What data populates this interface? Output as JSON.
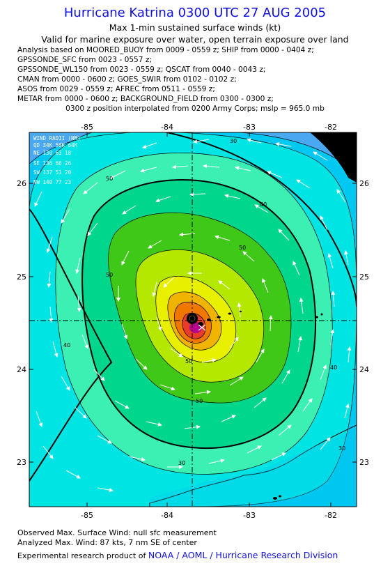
{
  "header": {
    "title": "Hurricane Katrina 0300 UTC 27 AUG 2005",
    "subtitle": "Max 1-min sustained surface winds (kt)",
    "valid_note": "Valid for marine exposure over water, open terrain exposure over land",
    "sources": [
      "Analysis based on  MOORED_BUOY from 0009 - 0559 z;  SHIP from 0000 - 0404 z;",
      "GPSSONDE_SFC from 0023 - 0557 z;",
      "GPSSONDE_WL150 from 0023 - 0559 z;  QSCAT from 0040 - 0043 z;",
      "CMAN from 0000 - 0600 z;  GOES_SWIR from 0102 - 0102 z;",
      "ASOS from 0029 - 0559 z;  AFREC from 0511 - 0559 z;",
      "METAR from 0000 - 0600 z;  BACKGROUND_FIELD from 0300 - 0300 z;"
    ],
    "interpolation": "0300 z position interpolated from 0200 Army Corps; mslp = 965.0 mb"
  },
  "map": {
    "lon_ticks": [
      "-85",
      "-84",
      "-83",
      "-82"
    ],
    "lat_ticks": [
      "26",
      "25",
      "24",
      "23"
    ],
    "contour_labels": [
      "50",
      "50",
      "40",
      "40",
      "50",
      "50",
      "50",
      "40",
      "30",
      "30",
      "30"
    ],
    "colors": {
      "lt30": "#4aa8f0",
      "c30": "#00c8f0",
      "c40": "#00e4e4",
      "c50": "#3cf0b4",
      "c60": "#00d68c",
      "c65": "#40c818",
      "c70": "#b4e800",
      "c75": "#e8f000",
      "c80": "#f0b400",
      "c85": "#f07800",
      "c90": "#e83c28",
      "c95": "#b8008c",
      "land": "#000000"
    }
  },
  "wind_radii": {
    "header": "WIND RADII (NM)",
    "columns": "QD  34K  50K  64K",
    "rows": [
      "NE  130   63   18",
      "SE  136   66   26",
      "SW  137   51   20",
      "NW  140   77   23"
    ]
  },
  "footer": {
    "observed": "Observed Max. Surface Wind: null sfc measurement",
    "analyzed": "Analyzed Max. Wind: 87 kts, 7 nm SE of center",
    "credit_prefix": "Experimental research product of ",
    "credit_link": "NOAA / AOML / Hurricane Research Division"
  }
}
